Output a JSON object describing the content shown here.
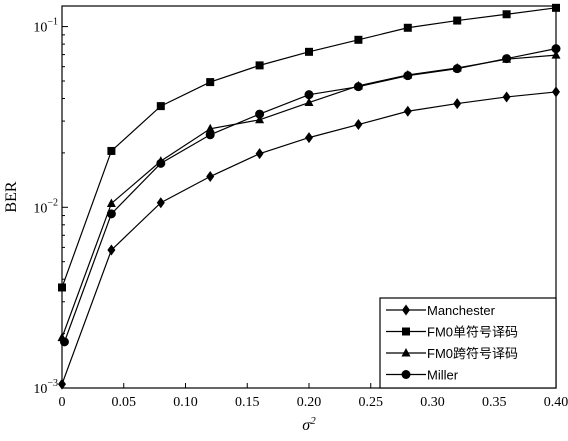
{
  "chart_data": {
    "type": "line",
    "xlabel": "σ²",
    "ylabel": "BER",
    "xlim": [
      0,
      0.4
    ],
    "ylim": [
      0.001,
      0.13
    ],
    "yscale": "log",
    "grid": false,
    "legend_position": "bottom-right",
    "x_ticks": [
      {
        "value": 0,
        "label": "0"
      },
      {
        "value": 0.05,
        "label": "0.05"
      },
      {
        "value": 0.1,
        "label": "0.10"
      },
      {
        "value": 0.15,
        "label": "0.15"
      },
      {
        "value": 0.2,
        "label": "0.20"
      },
      {
        "value": 0.25,
        "label": "0.25"
      },
      {
        "value": 0.3,
        "label": "0.30"
      },
      {
        "value": 0.35,
        "label": "0.35"
      },
      {
        "value": 0.4,
        "label": "0.40"
      }
    ],
    "y_ticks": [
      {
        "value": 0.001,
        "base": "10",
        "exp": "−3"
      },
      {
        "value": 0.01,
        "base": "10",
        "exp": "−2"
      },
      {
        "value": 0.1,
        "base": "10",
        "exp": "−1"
      }
    ],
    "series": [
      {
        "name": "Manchester",
        "marker": "diamond",
        "x": [
          0,
          0.04,
          0.08,
          0.12,
          0.16,
          0.2,
          0.24,
          0.28,
          0.32,
          0.36,
          0.4
        ],
        "values": [
          0.00105,
          0.0058,
          0.0106,
          0.0148,
          0.0198,
          0.0243,
          0.0287,
          0.034,
          0.0375,
          0.0408,
          0.0435
        ]
      },
      {
        "name": "FM0单符号译码",
        "marker": "square",
        "x": [
          0,
          0.04,
          0.08,
          0.12,
          0.16,
          0.2,
          0.24,
          0.28,
          0.32,
          0.36,
          0.4
        ],
        "values": [
          0.0036,
          0.0205,
          0.0363,
          0.0493,
          0.061,
          0.0725,
          0.0845,
          0.0985,
          0.108,
          0.117,
          0.127
        ]
      },
      {
        "name": "FM0跨符号译码",
        "marker": "triangle",
        "x": [
          0,
          0.04,
          0.08,
          0.12,
          0.16,
          0.2,
          0.24,
          0.28,
          0.32,
          0.36,
          0.4
        ],
        "values": [
          0.0019,
          0.0105,
          0.018,
          0.0272,
          0.0305,
          0.038,
          0.047,
          0.054,
          0.059,
          0.066,
          0.0695
        ]
      },
      {
        "name": "Miller",
        "marker": "circle",
        "x": [
          0.002,
          0.04,
          0.08,
          0.12,
          0.16,
          0.2,
          0.24,
          0.28,
          0.32,
          0.36,
          0.4
        ],
        "values": [
          0.0018,
          0.0092,
          0.0175,
          0.0252,
          0.0328,
          0.042,
          0.0465,
          0.0535,
          0.0585,
          0.0665,
          0.0755
        ]
      }
    ]
  }
}
